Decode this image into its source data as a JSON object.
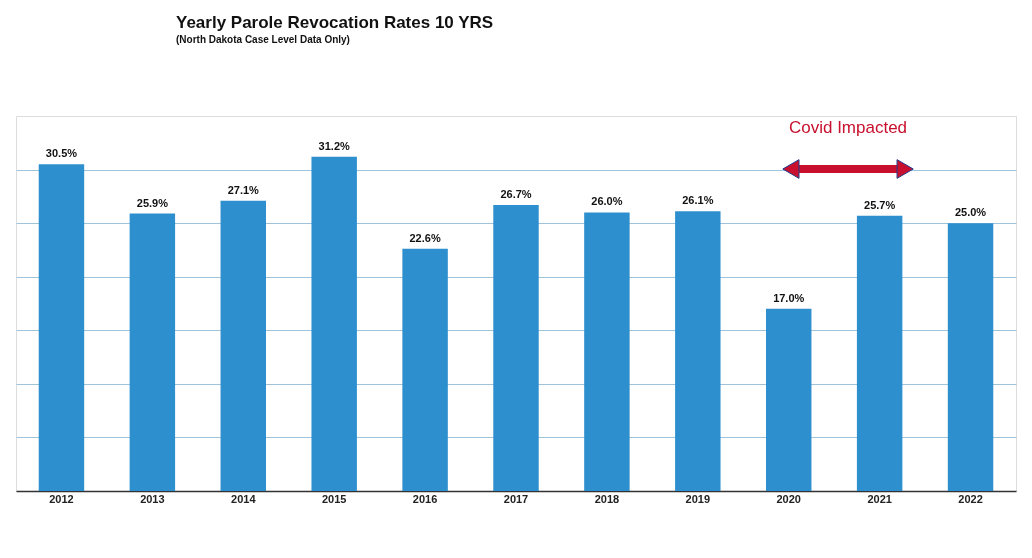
{
  "chart_data": {
    "type": "bar",
    "title": "Yearly Parole Revocation Rates 10 YRS",
    "subtitle": "(North Dakota Case Level Data Only)",
    "categories": [
      "2012",
      "2013",
      "2014",
      "2015",
      "2016",
      "2017",
      "2018",
      "2019",
      "2020",
      "2021",
      "2022"
    ],
    "values": [
      30.5,
      25.9,
      27.1,
      31.2,
      22.6,
      26.7,
      26.0,
      26.1,
      17.0,
      25.7,
      25.0
    ],
    "value_labels": [
      "30.5%",
      "25.9%",
      "27.1%",
      "31.2%",
      "22.6%",
      "26.7%",
      "26.0%",
      "26.1%",
      "17.0%",
      "25.7%",
      "25.0%"
    ],
    "color": "#2e8fcf",
    "ylim": [
      0,
      35
    ],
    "yticks": [
      {
        "value": 5,
        "label": null
      },
      {
        "value": 10,
        "label": null
      },
      {
        "value": 15,
        "label": null
      },
      {
        "value": 20,
        "label": null
      },
      {
        "value": 25,
        "label": null
      },
      {
        "value": 30,
        "label": null
      }
    ],
    "grid": "y",
    "tick_labels": "x",
    "annotations": [
      "Covid Impacted"
    ]
  }
}
